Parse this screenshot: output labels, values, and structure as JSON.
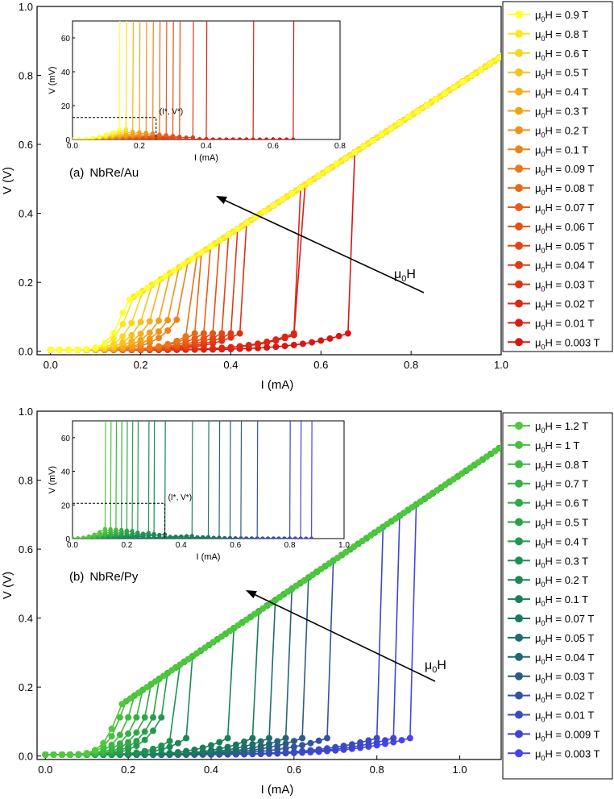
{
  "chart_data": [
    {
      "type": "line",
      "panel": "(a)",
      "title": "NbRe/Au",
      "xlabel": "I (mA)",
      "ylabel": "V (V)",
      "xlim": [
        -0.03,
        1.0
      ],
      "ylim": [
        -0.01,
        1.0
      ],
      "xticks": [
        "0.0",
        "0.2",
        "0.4",
        "0.6",
        "0.8",
        "1.0"
      ],
      "xtick_values": [
        0,
        0.2,
        0.4,
        0.6,
        0.8,
        1.0
      ],
      "yticks": [
        "0.0",
        "0.2",
        "0.4",
        "0.6",
        "0.8",
        "1.0"
      ],
      "ytick_values": [
        0,
        0.2,
        0.4,
        0.6,
        0.8,
        1.0
      ],
      "normal_state_slope": 0.855,
      "legend_position": "right",
      "arrow_label": "μ0H",
      "series": [
        {
          "name": "μ0H = 0.9 T",
          "field": "0.9 T",
          "color": "#ffff33",
          "switch_current": 0.16
        },
        {
          "name": "μ0H = 0.8 T",
          "field": "0.8 T",
          "color": "#fbe81f",
          "switch_current": 0.17
        },
        {
          "name": "μ0H = 0.6 T",
          "field": "0.6 T",
          "color": "#f7d61d",
          "switch_current": 0.19
        },
        {
          "name": "μ0H = 0.5 T",
          "field": "0.5 T",
          "color": "#f5c31c",
          "switch_current": 0.21
        },
        {
          "name": "μ0H = 0.4 T",
          "field": "0.4 T",
          "color": "#f3b21b",
          "switch_current": 0.23
        },
        {
          "name": "μ0H = 0.3 T",
          "field": "0.3 T",
          "color": "#f1a21a",
          "switch_current": 0.25
        },
        {
          "name": "μ0H = 0.2 T",
          "field": "0.2 T",
          "color": "#ef9319",
          "switch_current": 0.27
        },
        {
          "name": "μ0H = 0.1 T",
          "field": "0.1 T",
          "color": "#ed8318",
          "switch_current": 0.29
        },
        {
          "name": "μ0H = 0.09 T",
          "field": "0.09 T",
          "color": "#eb7517",
          "switch_current": 0.31
        },
        {
          "name": "μ0H = 0.08 T",
          "field": "0.08 T",
          "color": "#e96816",
          "switch_current": 0.32
        },
        {
          "name": "μ0H = 0.07 T",
          "field": "0.07 T",
          "color": "#e75c16",
          "switch_current": 0.34
        },
        {
          "name": "μ0H = 0.06 T",
          "field": "0.06 T",
          "color": "#e55015",
          "switch_current": 0.36
        },
        {
          "name": "μ0H = 0.05 T",
          "field": "0.05 T",
          "color": "#e34514",
          "switch_current": 0.38
        },
        {
          "name": "μ0H = 0.04 T",
          "field": "0.04 T",
          "color": "#e13b14",
          "switch_current": 0.4
        },
        {
          "name": "μ0H = 0.03 T",
          "field": "0.03 T",
          "color": "#df3113",
          "switch_current": 0.42
        },
        {
          "name": "μ0H = 0.02 T",
          "field": "0.02 T",
          "color": "#dd2713",
          "switch_current": 0.54
        },
        {
          "name": "μ0H = 0.01 T",
          "field": "0.01 T",
          "color": "#db1e12",
          "switch_current": 0.55
        },
        {
          "name": "μ0H = 0.003 T",
          "field": "0.003 T",
          "color": "#d91612",
          "switch_current": 0.66
        }
      ],
      "inset": {
        "xlabel": "I (mA)",
        "ylabel": "V (mV)",
        "xlim": [
          0,
          0.8
        ],
        "ylim": [
          0,
          70
        ],
        "xticks": [
          "0.0",
          "0.2",
          "0.4",
          "0.6",
          "0.8"
        ],
        "xtick_values": [
          0,
          0.2,
          0.4,
          0.6,
          0.8
        ],
        "yticks": [
          "0",
          "20",
          "40",
          "60"
        ],
        "ytick_values": [
          0,
          20,
          40,
          60
        ],
        "annotation": "(I*, V*)",
        "annotation_point": [
          0.25,
          13
        ],
        "switch_currents": [
          0.15,
          0.16,
          0.17,
          0.19,
          0.21,
          0.23,
          0.25,
          0.27,
          0.29,
          0.31,
          0.33,
          0.36,
          0.41,
          0.54,
          0.66
        ],
        "resistive_slopes": [
          380,
          320,
          270,
          230,
          190,
          160,
          130,
          100,
          80,
          60,
          45,
          30,
          5,
          0,
          0
        ]
      }
    },
    {
      "type": "line",
      "panel": "(b)",
      "title": "NbRe/Py",
      "xlabel": "I (mA)",
      "ylabel": "V (V)",
      "xlim": [
        -0.02,
        1.1
      ],
      "ylim": [
        -0.01,
        1.0
      ],
      "xticks": [
        "0.0",
        "0.2",
        "0.4",
        "0.6",
        "0.8",
        "1.0"
      ],
      "xtick_values": [
        0,
        0.2,
        0.4,
        0.6,
        0.8,
        1.0
      ],
      "yticks": [
        "0.0",
        "0.2",
        "0.4",
        "0.6",
        "0.8",
        "1.0"
      ],
      "ytick_values": [
        0,
        0.2,
        0.4,
        0.6,
        0.8,
        1.0
      ],
      "normal_state_slope": 0.815,
      "legend_position": "right",
      "arrow_label": "μ0H",
      "series": [
        {
          "name": "μ0H = 1.2 T",
          "field": "1.2 T",
          "color": "#4fc83a",
          "switch_current": 0.17
        },
        {
          "name": "μ0H = 1 T",
          "field": "1 T",
          "color": "#45c13d",
          "switch_current": 0.18
        },
        {
          "name": "μ0H = 0.8 T",
          "field": "0.8 T",
          "color": "#3cb940",
          "switch_current": 0.2
        },
        {
          "name": "μ0H = 0.7 T",
          "field": "0.7 T",
          "color": "#35b143",
          "switch_current": 0.22
        },
        {
          "name": "μ0H = 0.6 T",
          "field": "0.6 T",
          "color": "#2ea946",
          "switch_current": 0.24
        },
        {
          "name": "μ0H = 0.5 T",
          "field": "0.5 T",
          "color": "#28a14a",
          "switch_current": 0.26
        },
        {
          "name": "μ0H = 0.4 T",
          "field": "0.4 T",
          "color": "#23994e",
          "switch_current": 0.28
        },
        {
          "name": "μ0H = 0.3 T",
          "field": "0.3 T",
          "color": "#1f9152",
          "switch_current": 0.31
        },
        {
          "name": "μ0H = 0.2 T",
          "field": "0.2 T",
          "color": "#1c8957",
          "switch_current": 0.34
        },
        {
          "name": "μ0H = 0.1 T",
          "field": "0.1 T",
          "color": "#1a805c",
          "switch_current": 0.44
        },
        {
          "name": "μ0H = 0.07 T",
          "field": "0.07 T",
          "color": "#1a7862",
          "switch_current": 0.5
        },
        {
          "name": "μ0H = 0.05 T",
          "field": "0.05 T",
          "color": "#1e6f6c",
          "switch_current": 0.54
        },
        {
          "name": "μ0H = 0.04 T",
          "field": "0.04 T",
          "color": "#246677",
          "switch_current": 0.58
        },
        {
          "name": "μ0H = 0.03 T",
          "field": "0.03 T",
          "color": "#2b5d84",
          "switch_current": 0.62
        },
        {
          "name": "μ0H = 0.02 T",
          "field": "0.02 T",
          "color": "#3254a0",
          "switch_current": 0.68
        },
        {
          "name": "μ0H = 0.01 T",
          "field": "0.01 T",
          "color": "#394bbf",
          "switch_current": 0.8
        },
        {
          "name": "μ0H = 0.009 T",
          "field": "0.009 T",
          "color": "#3f45d2",
          "switch_current": 0.84
        },
        {
          "name": "μ0H = 0.003 T",
          "field": "0.003 T",
          "color": "#4644ea",
          "switch_current": 0.88
        }
      ],
      "inset": {
        "xlabel": "I (mA)",
        "ylabel": "V (mV)",
        "xlim": [
          0,
          1.0
        ],
        "ylim": [
          0,
          70
        ],
        "xticks": [
          "0.0",
          "0.2",
          "0.4",
          "0.6",
          "0.8",
          "1.0"
        ],
        "xtick_values": [
          0,
          0.2,
          0.4,
          0.6,
          0.8,
          1.0
        ],
        "yticks": [
          "0",
          "20",
          "40",
          "60"
        ],
        "ytick_values": [
          0,
          20,
          40,
          60
        ],
        "annotation": "(I*, V*)",
        "annotation_point": [
          0.34,
          21
        ],
        "switch_currents": [
          0.12,
          0.14,
          0.16,
          0.18,
          0.2,
          0.22,
          0.25,
          0.28,
          0.31,
          0.34,
          0.44,
          0.5,
          0.54,
          0.58,
          0.62,
          0.68,
          0.8,
          0.84,
          0.88
        ],
        "resistive_slopes": [
          400,
          330,
          280,
          240,
          200,
          170,
          130,
          100,
          80,
          60,
          30,
          15,
          8,
          4,
          2,
          1,
          0,
          0,
          0
        ]
      }
    }
  ]
}
